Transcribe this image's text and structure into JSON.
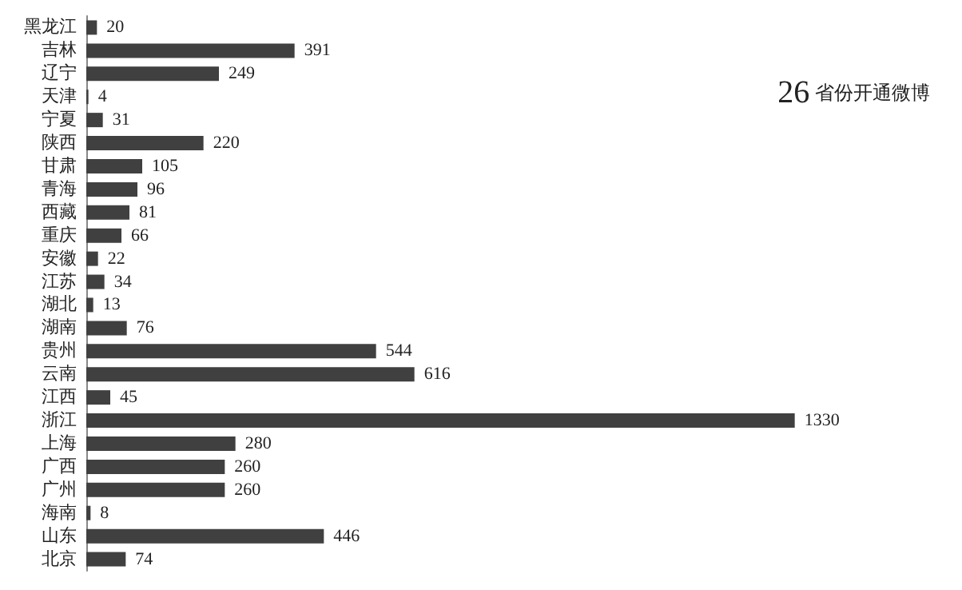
{
  "chart_data": {
    "type": "bar",
    "orientation": "horizontal",
    "categories": [
      "黑龙江",
      "吉林",
      "辽宁",
      "天津",
      "宁夏",
      "陕西",
      "甘肃",
      "青海",
      "西藏",
      "重庆",
      "安徽",
      "江苏",
      "湖北",
      "湖南",
      "贵州",
      "云南",
      "江西",
      "浙江",
      "上海",
      "广西",
      "广州",
      "海南",
      "山东",
      "北京"
    ],
    "values": [
      20,
      391,
      249,
      4,
      31,
      220,
      105,
      96,
      81,
      66,
      22,
      34,
      13,
      76,
      544,
      616,
      45,
      1330,
      280,
      260,
      260,
      8,
      446,
      74
    ],
    "color": "#404040",
    "data_labels": true,
    "tick_labels": "y",
    "annotations": [
      "26 省份开通微博"
    ]
  }
}
